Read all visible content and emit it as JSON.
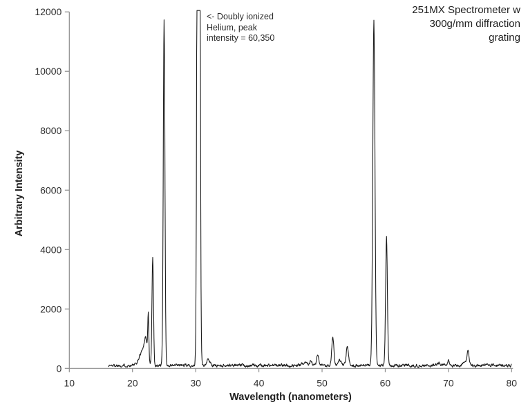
{
  "header": {
    "title_lines": [
      "251MX Spectrometer w",
      "300g/mm diffraction",
      "grating"
    ]
  },
  "annotation": {
    "lines": [
      "<- Doubly ionized",
      "Helium, peak",
      "intensity = 60,350"
    ]
  },
  "chart_data": {
    "type": "line",
    "title": "251MX Spectrometer w 300g/mm diffraction grating",
    "xlabel": "Wavelength (nanometers)",
    "ylabel": "Arbitrary Intensity",
    "xlim": [
      10,
      80
    ],
    "ylim": [
      0,
      12000
    ],
    "x_ticks": [
      10,
      20,
      30,
      40,
      50,
      60,
      70,
      80
    ],
    "y_ticks": [
      0,
      2000,
      4000,
      6000,
      8000,
      10000,
      12000
    ],
    "grid": false,
    "legend": "none",
    "line_color": "#1c1c1c",
    "axis_color": "#8c8c8c",
    "data_start_nm": 16.2,
    "data_end_nm": 80,
    "baseline": 100,
    "noise_amplitude": 45,
    "clipped_at_axis_max": true,
    "annotated_peak": {
      "nm": 30.45,
      "label": "Doubly ionized Helium",
      "true_intensity": 60350
    },
    "peaks": [
      {
        "nm": 21.6,
        "intensity": 600,
        "width": 0.5
      },
      {
        "nm": 22.1,
        "intensity": 750,
        "width": 0.22
      },
      {
        "nm": 22.5,
        "intensity": 1650,
        "width": 0.09
      },
      {
        "nm": 23.2,
        "intensity": 3750,
        "width": 0.12
      },
      {
        "nm": 25.0,
        "intensity": 11750,
        "width": 0.13
      },
      {
        "nm": 30.45,
        "intensity": 60350,
        "width": 0.16
      },
      {
        "nm": 32.0,
        "intensity": 280,
        "width": 0.3
      },
      {
        "nm": 47.3,
        "intensity": 220,
        "width": 0.35
      },
      {
        "nm": 48.2,
        "intensity": 250,
        "width": 0.2
      },
      {
        "nm": 49.3,
        "intensity": 430,
        "width": 0.15
      },
      {
        "nm": 51.7,
        "intensity": 1050,
        "width": 0.17
      },
      {
        "nm": 52.8,
        "intensity": 260,
        "width": 0.22
      },
      {
        "nm": 54.0,
        "intensity": 760,
        "width": 0.17
      },
      {
        "nm": 58.2,
        "intensity": 11750,
        "width": 0.17
      },
      {
        "nm": 60.2,
        "intensity": 4400,
        "width": 0.14
      },
      {
        "nm": 68.5,
        "intensity": 190,
        "width": 0.3
      },
      {
        "nm": 70.0,
        "intensity": 250,
        "width": 0.18
      },
      {
        "nm": 72.6,
        "intensity": 240,
        "width": 0.3
      },
      {
        "nm": 73.1,
        "intensity": 540,
        "width": 0.14
      }
    ]
  }
}
